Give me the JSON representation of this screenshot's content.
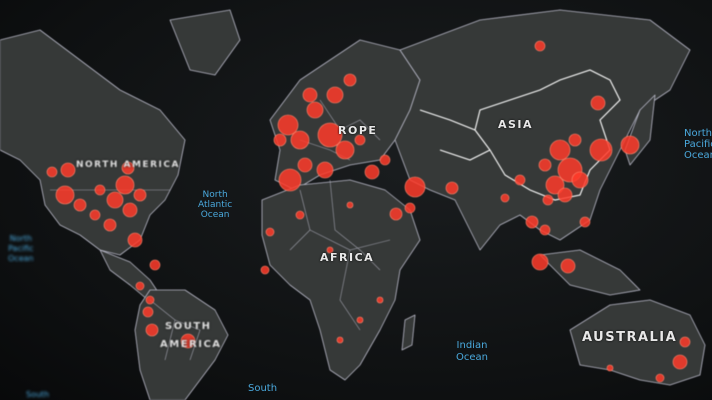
{
  "colors": {
    "background": "#0e1011",
    "land": "#3a3d3c",
    "border": "#c9c9d6",
    "asia_border": "#ffffff",
    "dot": "#ff3b2a",
    "ocean_label": "#4aa8dc",
    "continent_label": "#e8e8e8"
  },
  "continents": {
    "north_america": "NORTH AMERICA",
    "europe": "ROPE",
    "asia": "ASIA",
    "africa": "AFRICA",
    "south_america_1": "SOUTH",
    "south_america_2": "AMERICA",
    "australia": "AUSTRALIA"
  },
  "oceans": {
    "north_atlantic": [
      "North",
      "Atlantic",
      "Ocean"
    ],
    "north_pacific_left": [
      "North",
      "Pacific",
      "Ocean"
    ],
    "north_pacific_right": [
      "North",
      "Pacific",
      "Ocean"
    ],
    "indian": [
      "Indian",
      "Ocean"
    ],
    "south_bottom": [
      "South"
    ],
    "south_left": [
      "South"
    ]
  }
}
